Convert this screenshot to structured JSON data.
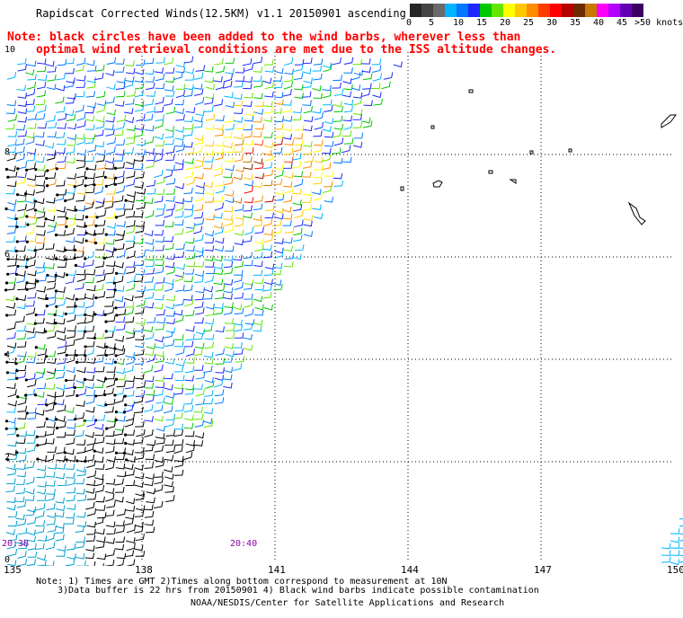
{
  "title": "Rapidscat Corrected Winds(12.5KM) v1.1 20150901 ascending",
  "note": {
    "line1": "Note: black circles have been added to the wind barbs, wherever less than",
    "line2": "optimal wind retrieval conditions are met due to the ISS altitude changes."
  },
  "legend": {
    "colors": [
      "#262626",
      "#444444",
      "#6a6a6a",
      "#00b4ff",
      "#0078ff",
      "#1c28ff",
      "#00c800",
      "#64e600",
      "#ffff00",
      "#ffc800",
      "#ff8c00",
      "#ff3c00",
      "#ff0000",
      "#b40000",
      "#6e2a00",
      "#c87800",
      "#ff00ff",
      "#b400ff",
      "#6400b4",
      "#3c0064"
    ],
    "labels": [
      "0",
      "5",
      "10",
      "15",
      "20",
      "25",
      "30",
      "35",
      "40",
      "45",
      ">50 knots"
    ]
  },
  "axes": {
    "longitude_ticks": [
      "135",
      "138",
      "141",
      "144",
      "147",
      "150"
    ],
    "latitude_ticks": [
      "0",
      "2",
      "4",
      "6",
      "8",
      "10"
    ]
  },
  "times": [
    "20:38",
    "20:40"
  ],
  "footer": {
    "line1": "Note: 1) Times are GMT 2)Times along bottom correspond to measurement at 10N",
    "line2": "3)Data buffer is 22 hrs from 20150901 4) Black wind barbs indicate possible contamination",
    "line3": "NOAA/NESDIS/Center for Satellite Applications and Research"
  }
}
